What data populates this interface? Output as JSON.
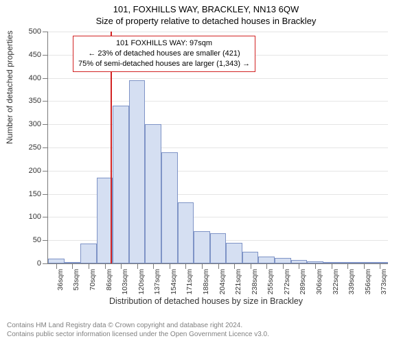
{
  "header": {
    "address": "101, FOXHILLS WAY, BRACKLEY, NN13 6QW",
    "subtitle": "Size of property relative to detached houses in Brackley"
  },
  "histogram": {
    "type": "histogram",
    "ylim": [
      0,
      500
    ],
    "ytick_step": 50,
    "xlabels": [
      "36sqm",
      "53sqm",
      "70sqm",
      "86sqm",
      "103sqm",
      "120sqm",
      "137sqm",
      "154sqm",
      "171sqm",
      "188sqm",
      "204sqm",
      "221sqm",
      "238sqm",
      "255sqm",
      "272sqm",
      "289sqm",
      "306sqm",
      "322sqm",
      "339sqm",
      "356sqm",
      "373sqm"
    ],
    "values": [
      10,
      0,
      43,
      185,
      340,
      395,
      300,
      240,
      132,
      70,
      65,
      44,
      25,
      15,
      12,
      8,
      5,
      3,
      2,
      2,
      2
    ],
    "bar_fill": "#d5dff2",
    "bar_border": "#7e93c6",
    "grid_color": "#e5e5e5",
    "axis_color": "#7a7a7a",
    "background": "#ffffff",
    "vline_index": 3.85,
    "vline_color": "#d22222",
    "ylabel": "Number of detached properties",
    "xlabel": "Distribution of detached houses by size in Brackley",
    "bar_width_ratio": 1.0,
    "label_fontsize": 12,
    "tick_fontsize": 11
  },
  "annotation": {
    "line1": "101 FOXHILLS WAY: 97sqm",
    "line2": "← 23% of detached houses are smaller (421)",
    "line3": "75% of semi-detached houses are larger (1,343) →",
    "border_color": "#d22222",
    "fontsize": 11
  },
  "footer": {
    "line1": "Contains HM Land Registry data © Crown copyright and database right 2024.",
    "line2": "Contains public sector information licensed under the Open Government Licence v3.0.",
    "color": "#808080"
  }
}
